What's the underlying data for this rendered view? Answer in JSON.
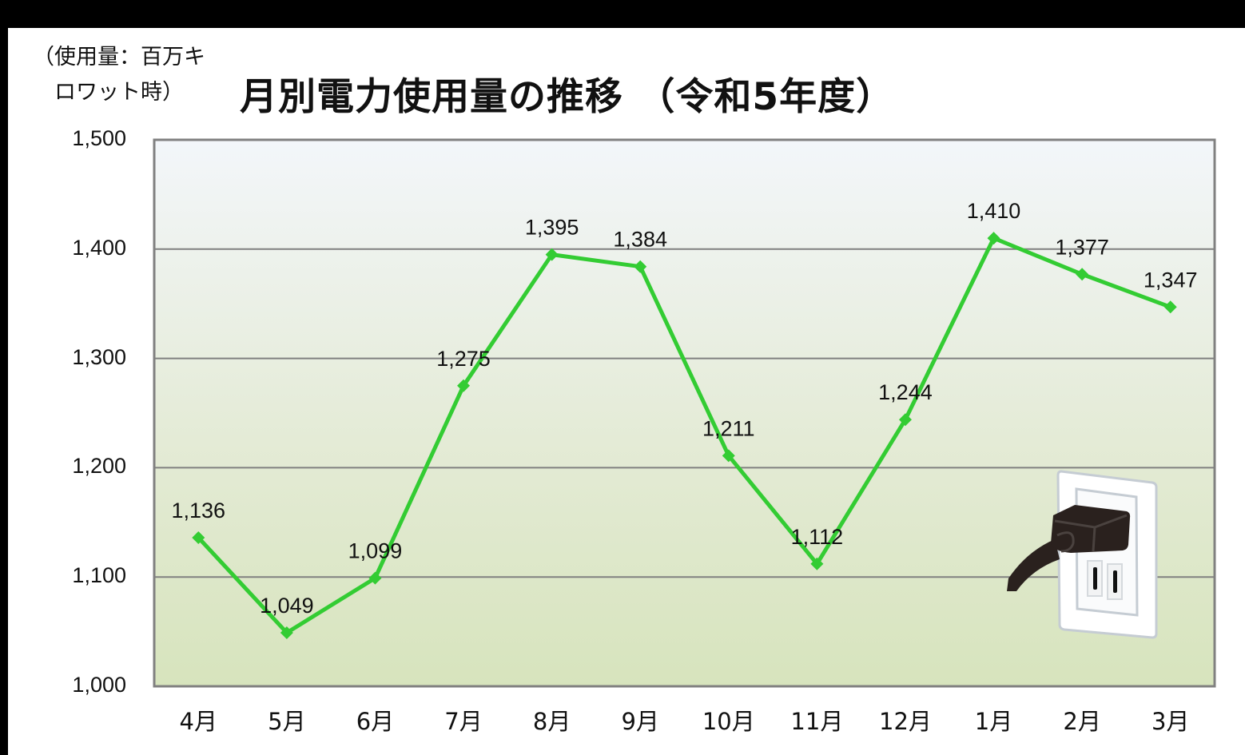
{
  "page": {
    "unit_label_line1": "（使用量：百万キ",
    "unit_label_line2": "ロワット時）",
    "title": "月別電力使用量の推移 （令和5年度）"
  },
  "colors": {
    "line": "#33cc33",
    "frame": "#808080",
    "grid": "#808080",
    "bg_top": "#f3f6fa",
    "bg_bottom": "#d7e4bd"
  },
  "decoration": {
    "icon": "power-outlet-with-plug-icon"
  },
  "chart_data": {
    "type": "line",
    "title": "月別電力使用量の推移 （令和5年度）",
    "xlabel": "",
    "ylabel": "（使用量：百万キロワット時）",
    "categories": [
      "4月",
      "5月",
      "6月",
      "7月",
      "8月",
      "9月",
      "10月",
      "11月",
      "12月",
      "1月",
      "2月",
      "3月"
    ],
    "values": [
      1136,
      1049,
      1099,
      1275,
      1395,
      1384,
      1211,
      1112,
      1244,
      1410,
      1377,
      1347
    ],
    "value_labels": [
      "1,136",
      "1,049",
      "1,099",
      "1,275",
      "1,395",
      "1,384",
      "1,211",
      "1,112",
      "1,244",
      "1,410",
      "1,377",
      "1,347"
    ],
    "ylim": [
      1000,
      1500
    ],
    "yticks": [
      "1,000",
      "1,100",
      "1,200",
      "1,300",
      "1,400",
      "1,500"
    ],
    "grid": true,
    "legend": "none",
    "marker": "diamond"
  }
}
